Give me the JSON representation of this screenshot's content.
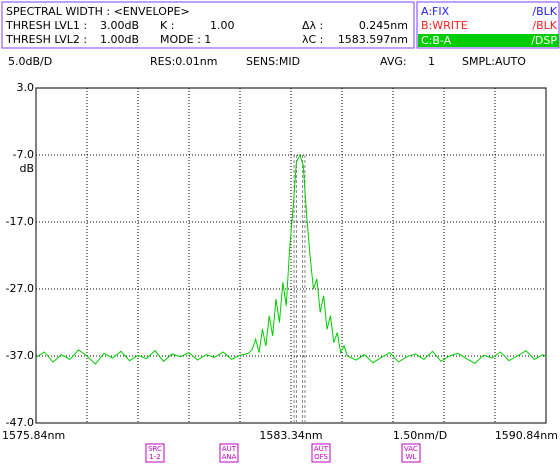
{
  "header": {
    "mode": "SPECTRAL WIDTH : <ENVELOPE>",
    "row1": [
      "THRESH LVL1 :",
      "3.00dB",
      "K :",
      "1.00",
      "Δλ :",
      "0.245nm"
    ],
    "row2": [
      "THRESH LVL2 :",
      "1.00dB",
      "MODE : 1",
      "λC :",
      "1583.597nm"
    ]
  },
  "traces": [
    [
      "A:FIX",
      "/BLK"
    ],
    [
      "B:WRITE",
      "/BLK"
    ],
    [
      "C:B-A",
      "/DSP"
    ]
  ],
  "status": [
    "5.0dB/D",
    "RES:0.01nm",
    "SENS:MID",
    "AVG:",
    "1",
    "SMPL:AUTO"
  ],
  "softkeys": [
    [
      "SRC",
      "1-2"
    ],
    [
      "AUT",
      "ANA"
    ],
    [
      "AUT",
      "OFS"
    ],
    [
      "VAC",
      "WL"
    ]
  ],
  "chart_data": {
    "type": "line",
    "color": "#00cc00",
    "y_unit": "dB",
    "x_scale": "1.50nm/D",
    "xlim": [
      1575.84,
      1590.84
    ],
    "ylim": [
      -47,
      3
    ],
    "xticks": [
      {
        "value": 1575.84,
        "label": "1575.84nm"
      },
      {
        "value": 1583.34,
        "label": "1583.34nm"
      },
      {
        "value": 1590.84,
        "label": "1590.84nm"
      }
    ],
    "xgrid": [
      1575.84,
      1577.34,
      1578.84,
      1580.34,
      1581.84,
      1583.34,
      1584.84,
      1586.34,
      1587.84,
      1589.34,
      1590.84
    ],
    "yticks": [
      {
        "value": 3,
        "label": "3.0"
      },
      {
        "value": -7,
        "label": "-7.0"
      },
      {
        "value": -17,
        "label": "-17.0"
      },
      {
        "value": -27,
        "label": "-27.0"
      },
      {
        "value": -37,
        "label": "-37.0"
      },
      {
        "value": -47,
        "label": "-47.0"
      }
    ],
    "markers": [
      1583.43,
      1583.5,
      1583.68,
      1583.75
    ],
    "x": [
      1575.84,
      1576.09,
      1576.34,
      1576.59,
      1576.84,
      1577.09,
      1577.34,
      1577.59,
      1577.84,
      1578.09,
      1578.34,
      1578.59,
      1578.84,
      1579.09,
      1579.34,
      1579.59,
      1579.84,
      1580.09,
      1580.34,
      1580.59,
      1580.84,
      1581.09,
      1581.34,
      1581.59,
      1581.84,
      1582.09,
      1582.2,
      1582.3,
      1582.4,
      1582.5,
      1582.6,
      1582.7,
      1582.8,
      1582.9,
      1583.0,
      1583.1,
      1583.2,
      1583.3,
      1583.4,
      1583.5,
      1583.6,
      1583.7,
      1583.8,
      1583.9,
      1584.0,
      1584.1,
      1584.2,
      1584.3,
      1584.4,
      1584.5,
      1584.6,
      1584.7,
      1584.8,
      1584.9,
      1585.0,
      1585.25,
      1585.5,
      1585.75,
      1586.0,
      1586.25,
      1586.5,
      1586.75,
      1587.0,
      1587.25,
      1587.5,
      1587.75,
      1588.0,
      1588.25,
      1588.5,
      1588.75,
      1589.0,
      1589.25,
      1589.5,
      1589.75,
      1590.0,
      1590.25,
      1590.5,
      1590.75,
      1590.84
    ],
    "values": [
      -37.2,
      -36.4,
      -37.9,
      -36.8,
      -37.5,
      -36.1,
      -37.0,
      -38.2,
      -36.6,
      -37.3,
      -36.3,
      -37.7,
      -36.9,
      -37.4,
      -36.2,
      -37.8,
      -36.7,
      -37.1,
      -36.5,
      -37.6,
      -36.8,
      -37.2,
      -36.4,
      -37.5,
      -36.9,
      -36.6,
      -36.0,
      -34.5,
      -36.5,
      -33.0,
      -35.5,
      -31.0,
      -34.0,
      -28.5,
      -32.0,
      -26.0,
      -29.5,
      -21.0,
      -15.0,
      -8.0,
      -7.0,
      -8.5,
      -16.0,
      -22.0,
      -27.0,
      -25.5,
      -30.5,
      -28.0,
      -33.0,
      -31.0,
      -35.0,
      -33.5,
      -36.5,
      -35.5,
      -37.0,
      -37.6,
      -36.8,
      -38.0,
      -37.2,
      -36.5,
      -37.9,
      -37.1,
      -36.7,
      -37.5,
      -36.3,
      -37.8,
      -37.0,
      -36.6,
      -37.4,
      -38.1,
      -36.9,
      -37.3,
      -36.4,
      -37.7,
      -37.0,
      -36.2,
      -37.5,
      -36.8,
      -37.1
    ]
  }
}
